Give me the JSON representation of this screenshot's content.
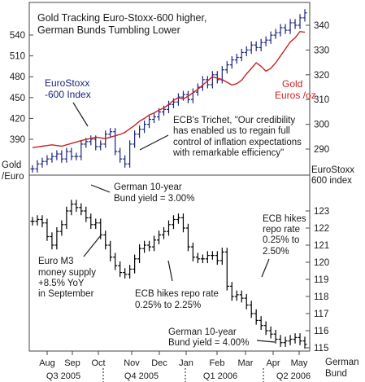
{
  "chart_data": [
    {
      "type": "line",
      "title": "Gold Tracking Euro-Stoxx-600 higher, German Bunds Tumbling Lower",
      "title_lines": [
        "Gold Tracking Euro-Stoxx-600 higher,",
        "German Bunds Tumbling Lower"
      ],
      "left_axis": {
        "label_lines": [
          "Gold",
          "/Euro"
        ],
        "ticks": [
          390,
          420,
          450,
          480,
          510,
          540
        ]
      },
      "right_axis": {
        "label_lines": [
          "EuroStoxx",
          "600 index"
        ],
        "ticks": [
          290,
          300,
          310,
          320,
          330,
          340
        ]
      },
      "grid": false,
      "series": [
        {
          "name": "EuroStoxx -600 Index",
          "label_lines": [
            "EuroStoxx",
            "-600 Index"
          ],
          "axis": "right",
          "style": "ohlc",
          "color": "#1a237e",
          "values": [
            282,
            284,
            285,
            286,
            287,
            288,
            286,
            289,
            287,
            287,
            292,
            293,
            294,
            291,
            292,
            296,
            297,
            289,
            286,
            284,
            292,
            296,
            298,
            300,
            302,
            303,
            305,
            306,
            308,
            309,
            311,
            312,
            310,
            313,
            315,
            318,
            316,
            320,
            318,
            322,
            324,
            326,
            327,
            329,
            330,
            332,
            331,
            333,
            334,
            336,
            337,
            339,
            338,
            341,
            340,
            343,
            345
          ]
        },
        {
          "name": "Gold Euros /oz",
          "label_lines": [
            "Gold",
            "Euros /oz"
          ],
          "axis": "left",
          "style": "line",
          "color": "#cc1f1f",
          "values": [
            378,
            379,
            380,
            381,
            382,
            381,
            380,
            382,
            384,
            386,
            388,
            390,
            391,
            393,
            392,
            391,
            393,
            395,
            397,
            400,
            405,
            410,
            416,
            420,
            425,
            428,
            432,
            435,
            440,
            446,
            450,
            448,
            452,
            457,
            462,
            468,
            474,
            480,
            478,
            476,
            472,
            468,
            470,
            475,
            484,
            492,
            500,
            495,
            488,
            492,
            500,
            510,
            520,
            530,
            536,
            545,
            544
          ]
        }
      ],
      "annotations": [
        "ECB's Trichet, \"Our credibility has enabled us to regain full control of inflation expectations with remarkable efficiency\""
      ],
      "annotation_lines": [
        "ECB's Trichet, \"Our credibility",
        "has enabled us to regain full",
        "control of inflation expectations",
        "with remarkable efficiency\""
      ]
    },
    {
      "type": "line",
      "title": "",
      "right_axis": {
        "label_lines": [
          "German",
          "Bund"
        ],
        "ticks": [
          115,
          116,
          117,
          118,
          119,
          120,
          121,
          122,
          123
        ]
      },
      "x_axis": {
        "months": [
          "Aug",
          "Sep",
          "Oct",
          "Nov",
          "Dec",
          "Jan",
          "Feb",
          "Mar",
          "Apr",
          "May"
        ],
        "quarters": [
          "Q3 2005",
          "Q4 2005",
          "Q1 2006",
          "Q2 2006"
        ]
      },
      "grid": false,
      "series": [
        {
          "name": "German Bund",
          "axis": "right",
          "style": "ohlc",
          "color": "#000000",
          "values": [
            122.4,
            122.5,
            122.3,
            121.5,
            121.0,
            121.8,
            122.2,
            123.0,
            123.4,
            123.2,
            123.0,
            122.6,
            122.2,
            122.3,
            121.6,
            121.0,
            120.3,
            119.8,
            119.4,
            119.3,
            119.6,
            120.2,
            120.8,
            121.0,
            120.9,
            121.3,
            121.6,
            121.8,
            122.2,
            122.5,
            122.6,
            122.0,
            120.9,
            120.3,
            120.2,
            120.2,
            120.4,
            120.4,
            120.1,
            120.6,
            118.6,
            118.0,
            118.1,
            117.9,
            117.5,
            117.0,
            116.6,
            116.3,
            116.0,
            115.8,
            115.5,
            115.3,
            115.4,
            115.5,
            115.6,
            115.4,
            115.2
          ]
        }
      ],
      "annotations": [
        "German 10-year Bund yield = 3.00%",
        "Euro M3 money supply +8.5% YoY in September",
        "ECB hikes repo rate 0.25% to 2.25%",
        "ECB hikes repo rate 0.25% to 2.50%",
        "German 10-year Bund yield = 4.00%"
      ],
      "annotation_lines": [
        [
          "German 10-year",
          "Bund yield = 3.00%"
        ],
        [
          "Euro M3",
          "money supply",
          "+8.5% YoY",
          "in September"
        ],
        [
          "ECB hikes repo rate",
          "0.25% to 2.25%"
        ],
        [
          "ECB hikes",
          "repo rate",
          "0.25% to",
          "2.50%"
        ],
        [
          "German 10-year",
          "Bund yield = 4.00%"
        ]
      ]
    }
  ],
  "colors": {
    "stoxx": "#1a237e",
    "gold": "#cc1f1f",
    "bund": "#000000",
    "text": "#1a1a1a",
    "label_blue": "#1a237e",
    "label_red": "#cc1f1f"
  }
}
